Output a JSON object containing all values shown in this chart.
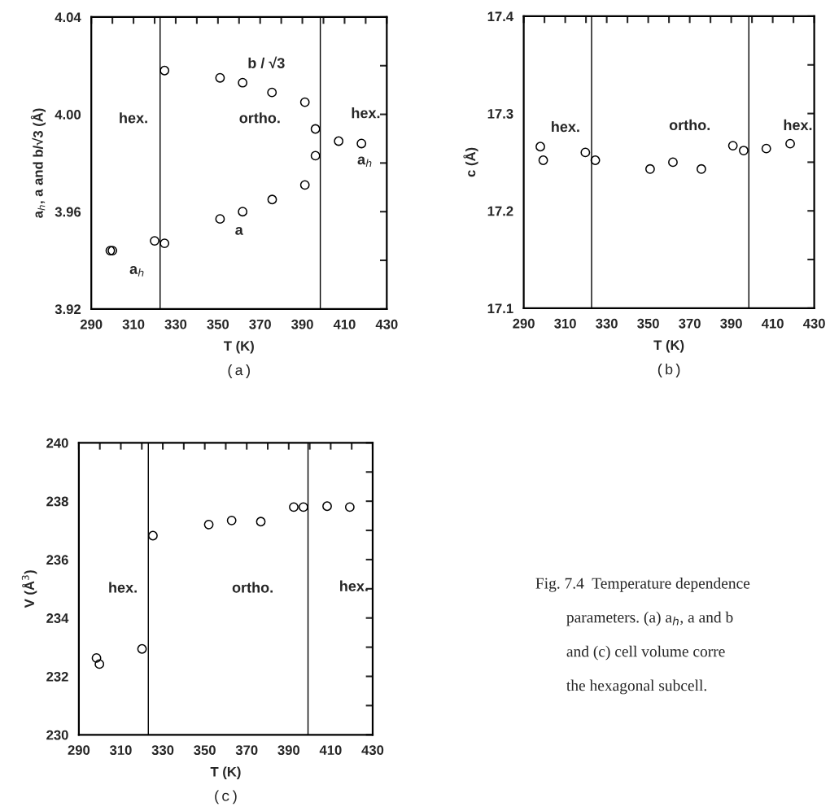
{
  "chart_data": [
    {
      "type": "scatter",
      "xlabel": "T (K)",
      "ylabel": "a$_{h}$, a and b/√3 (Å)",
      "marker": "circle",
      "x": [
        299,
        300,
        320,
        324.7,
        324.7,
        351,
        361.7,
        375.6,
        391.2,
        396.2,
        396.2,
        391.2,
        375.7,
        361.7,
        351,
        407.2,
        418
      ],
      "series": [
        {
          "color": "#000000",
          "values": [
            3.944,
            3.944,
            3.948,
            3.947,
            4.018,
            4.015,
            4.013,
            4.009,
            4.005,
            3.994,
            3.983,
            3.971,
            3.965,
            3.96,
            3.957,
            3.989,
            3.988
          ]
        }
      ],
      "xlim": [
        290,
        430
      ],
      "xticks": [
        290,
        {
          "value": 300,
          "label": null
        },
        310,
        {
          "value": 320,
          "label": null
        },
        330,
        {
          "value": 340,
          "label": null
        },
        350,
        {
          "value": 360,
          "label": null
        },
        370,
        {
          "value": 380,
          "label": null
        },
        390,
        {
          "value": 400,
          "label": null
        },
        410,
        {
          "value": 420,
          "label": null
        },
        430
      ],
      "ylim": [
        3.92,
        4.04
      ],
      "yticks": [
        {
          "value": 3.92,
          "label": "3.92"
        },
        {
          "value": 3.94,
          "label": null
        },
        {
          "value": 3.96,
          "label": "3.96"
        },
        {
          "value": 3.98,
          "label": null
        },
        {
          "value": 4.0,
          "label": "4.00"
        },
        {
          "value": 4.02,
          "label": null
        },
        {
          "value": 4.04,
          "label": "4.04"
        }
      ],
      "ref_lines": [
        {
          "axis": "x",
          "value": 322.6,
          "color": "#000000"
        },
        {
          "axis": "x",
          "value": 398.5,
          "color": "#000000"
        }
      ],
      "annotations": [
        "hex.",
        "ortho.",
        "hex.",
        "b / √3",
        "a$_{h}$",
        "a",
        "a$_{h}$",
        "(a)"
      ]
    },
    {
      "type": "scatter",
      "xlabel": "T (K)",
      "ylabel": "c (Å)",
      "marker": "circle",
      "x": [
        298,
        299.4,
        319.7,
        324.5,
        350.9,
        361.9,
        375.6,
        390.8,
        396,
        406.9,
        418.4
      ],
      "series": [
        {
          "color": "#000000",
          "values": [
            17.266,
            17.252,
            17.26,
            17.252,
            17.243,
            17.25,
            17.243,
            17.267,
            17.262,
            17.264,
            17.269
          ]
        }
      ],
      "xlim": [
        290,
        430
      ],
      "xticks": [
        290,
        {
          "value": 300,
          "label": null
        },
        310,
        {
          "value": 320,
          "label": null
        },
        330,
        {
          "value": 340,
          "label": null
        },
        350,
        {
          "value": 360,
          "label": null
        },
        370,
        {
          "value": 380,
          "label": null
        },
        390,
        {
          "value": 400,
          "label": null
        },
        410,
        {
          "value": 420,
          "label": null
        },
        430
      ],
      "ylim": [
        17.1,
        17.4
      ],
      "yticks": [
        17.1,
        {
          "value": 17.15,
          "label": null
        },
        17.2,
        {
          "value": 17.25,
          "label": null
        },
        17.3,
        {
          "value": 17.35,
          "label": null
        },
        17.4
      ],
      "ref_lines": [
        {
          "axis": "x",
          "value": 322.7,
          "color": "#000000"
        },
        {
          "axis": "x",
          "value": 398.5,
          "color": "#000000"
        }
      ],
      "annotations": [
        "hex.",
        "ortho.",
        "hex.",
        "(b)"
      ]
    },
    {
      "type": "scatter",
      "xlabel": "T (K)",
      "ylabel": "V (Å$^{3}$)",
      "marker": "circle",
      "x": [
        298.4,
        299.8,
        320.1,
        325.3,
        351.9,
        362.8,
        376.7,
        392.4,
        397,
        408.3,
        419.1
      ],
      "series": [
        {
          "color": "#000000",
          "values": [
            232.63,
            232.42,
            232.94,
            236.82,
            237.2,
            237.34,
            237.3,
            237.8,
            237.8,
            237.83,
            237.8
          ]
        }
      ],
      "xlim": [
        290,
        430
      ],
      "xticks": [
        290,
        {
          "value": 300,
          "label": null
        },
        310,
        {
          "value": 320,
          "label": null
        },
        330,
        {
          "value": 340,
          "label": null
        },
        350,
        {
          "value": 360,
          "label": null
        },
        370,
        {
          "value": 380,
          "label": null
        },
        390,
        {
          "value": 400,
          "label": null
        },
        410,
        {
          "value": 420,
          "label": null
        },
        430
      ],
      "ylim": [
        230,
        240
      ],
      "yticks": [
        230,
        {
          "value": 231,
          "label": null
        },
        232,
        {
          "value": 233,
          "label": null
        },
        234,
        {
          "value": 235,
          "label": null
        },
        236,
        {
          "value": 237,
          "label": null
        },
        238,
        {
          "value": 239,
          "label": null
        },
        240
      ],
      "ref_lines": [
        {
          "axis": "x",
          "value": 323.1,
          "color": "#000000"
        },
        {
          "axis": "x",
          "value": 399.2,
          "color": "#000000"
        }
      ],
      "annotations": [
        "hex.",
        "ortho.",
        "hex.",
        "(c)"
      ]
    },
    {
      "type": "other",
      "annotations": [
        "Fig. 7.4  Temperature dependence",
        "parameters. (a) a$_{h}$, a and b",
        "and (c) cell volume corre",
        "the hexagonal subcell."
      ]
    }
  ]
}
